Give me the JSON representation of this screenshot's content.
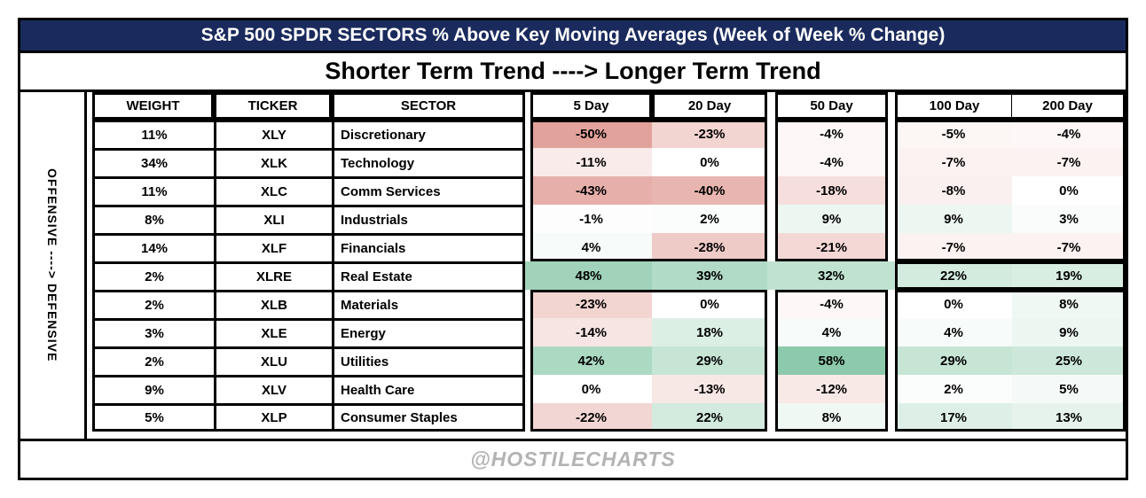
{
  "title": "S&P 500 SPDR SECTORS % Above Key Moving Averages (Week of Week % Change)",
  "subtitle": "Shorter Term Trend ----> Longer Term Trend",
  "side_label": "OFFENSIVE ----> DEFENSIVE",
  "watermark": "@HOSTILECHARTS",
  "colors": {
    "title_bg": "#1a2a5c",
    "title_text": "#ffffff",
    "border": "#000000",
    "watermark_text": "#b3b3b3",
    "heat_red": "#e2a29c",
    "heat_green": "#8ccaab"
  },
  "chart_data": {
    "type": "heatmap",
    "title": "S&P 500 SPDR SECTORS % Above Key Moving Averages (Week of Week % Change)",
    "columns": [
      "WEIGHT",
      "TICKER",
      "SECTOR",
      "5 Day",
      "20 Day",
      "50 Day",
      "100 Day",
      "200 Day"
    ],
    "value_columns": [
      "5 Day",
      "20 Day",
      "50 Day",
      "100 Day",
      "200 Day"
    ],
    "value_format": "percent",
    "heat_scale": {
      "min": -50,
      "max": 58
    },
    "rows": [
      {
        "weight": "11%",
        "ticker": "XLY",
        "sector": "Discretionary",
        "values": [
          -50,
          -23,
          -4,
          -5,
          -4
        ]
      },
      {
        "weight": "34%",
        "ticker": "XLK",
        "sector": "Technology",
        "values": [
          -11,
          0,
          -4,
          -7,
          -7
        ]
      },
      {
        "weight": "11%",
        "ticker": "XLC",
        "sector": "Comm Services",
        "values": [
          -43,
          -40,
          -18,
          -8,
          0
        ]
      },
      {
        "weight": "8%",
        "ticker": "XLI",
        "sector": "Industrials",
        "values": [
          -1,
          2,
          9,
          9,
          3
        ]
      },
      {
        "weight": "14%",
        "ticker": "XLF",
        "sector": "Financials",
        "values": [
          4,
          -28,
          -21,
          -7,
          -7
        ]
      },
      {
        "weight": "2%",
        "ticker": "XLRE",
        "sector": "Real Estate",
        "values": [
          48,
          39,
          32,
          22,
          19
        ]
      },
      {
        "weight": "2%",
        "ticker": "XLB",
        "sector": "Materials",
        "values": [
          -23,
          0,
          -4,
          0,
          8
        ]
      },
      {
        "weight": "3%",
        "ticker": "XLE",
        "sector": "Energy",
        "values": [
          -14,
          18,
          4,
          4,
          9
        ]
      },
      {
        "weight": "2%",
        "ticker": "XLU",
        "sector": "Utilities",
        "values": [
          42,
          29,
          58,
          29,
          25
        ]
      },
      {
        "weight": "9%",
        "ticker": "XLV",
        "sector": "Health Care",
        "values": [
          0,
          -13,
          -12,
          2,
          5
        ]
      },
      {
        "weight": "5%",
        "ticker": "XLP",
        "sector": "Consumer Staples",
        "values": [
          -22,
          22,
          8,
          17,
          13
        ]
      }
    ]
  }
}
